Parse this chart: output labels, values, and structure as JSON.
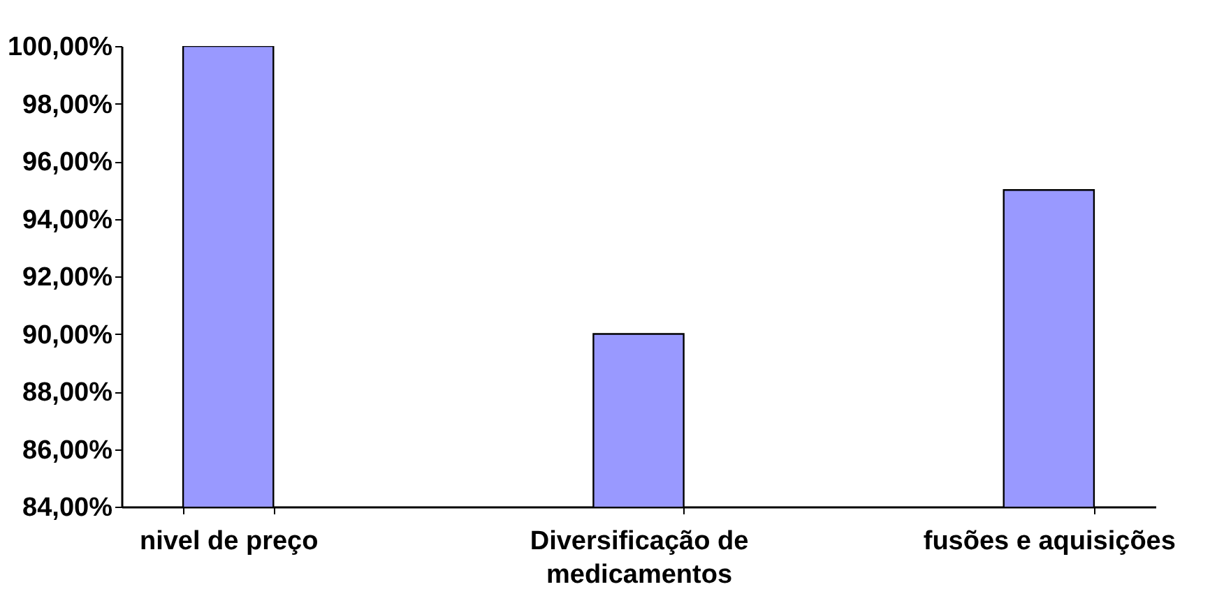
{
  "chart_data": {
    "type": "bar",
    "categories": [
      "nivel de preço",
      "Diversificação de medicamentos",
      "fusões e aquisições"
    ],
    "values": [
      100,
      90,
      95
    ],
    "color": "#9999ff",
    "ylim": [
      84,
      100
    ],
    "yticks": [
      {
        "value": 84,
        "label": "84,00%"
      },
      {
        "value": 86,
        "label": "86,00%"
      },
      {
        "value": 88,
        "label": "88,00%"
      },
      {
        "value": 90,
        "label": "90,00%"
      },
      {
        "value": 92,
        "label": "92,00%"
      },
      {
        "value": 94,
        "label": "94,00%"
      },
      {
        "value": 96,
        "label": "96,00%"
      },
      {
        "value": 98,
        "label": "98,00%"
      },
      {
        "value": 100,
        "label": "100,00%"
      }
    ],
    "grid": false
  }
}
